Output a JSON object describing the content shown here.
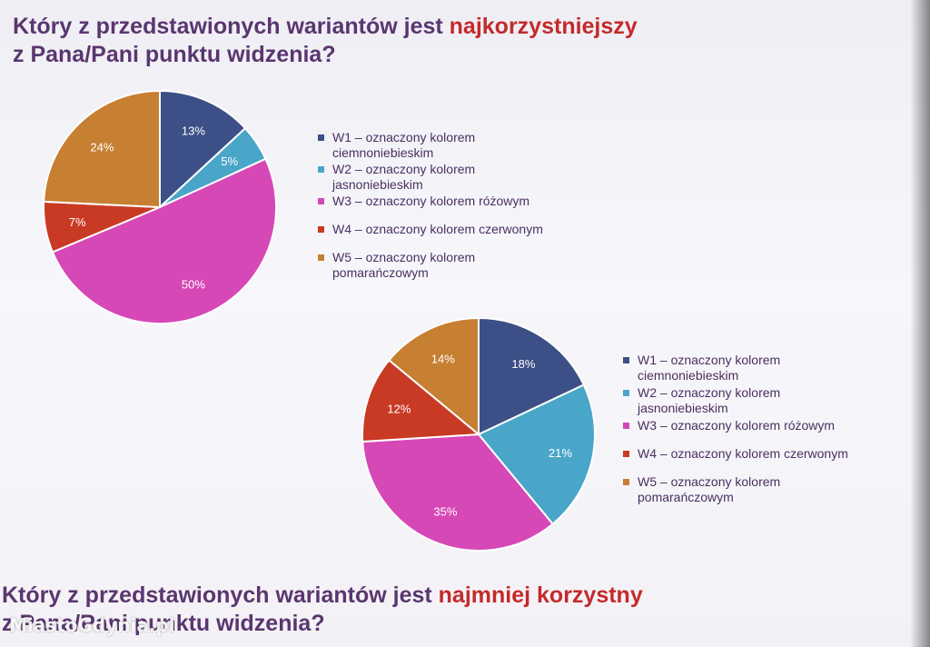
{
  "heading_top": {
    "part1": "Który z przedstawionych wariantów jest ",
    "highlight": "najkorzystniejszy",
    "line2": "z Pana/Pani punktu widzenia?"
  },
  "heading_bottom": {
    "part1": "Który z przedstawionych wariantów jest ",
    "highlight": "najmniej korzystny",
    "line2": "z Pana/Pani punktu widzenia?"
  },
  "watermark": "MiastoGdynia.pl",
  "colors": {
    "title": "#5a3670",
    "accent": "#c42a2a",
    "W1": "#3c4f86",
    "W2": "#4aa6c8",
    "W3": "#d648b6",
    "W4": "#c93a24",
    "W5": "#c77f32"
  },
  "legend": [
    {
      "line1": "W1 – oznaczony kolorem",
      "line2": "ciemnoniebieskim"
    },
    {
      "line1": "W2 – oznaczony kolorem",
      "line2": "jasnoniebieskim"
    },
    {
      "line1": "W3 – oznaczony kolorem różowym",
      "line2": ""
    },
    {
      "line1": "W4 – oznaczony kolorem czerwonym",
      "line2": ""
    },
    {
      "line1": "W5 – oznaczony kolorem",
      "line2": "pomarańczowym"
    }
  ],
  "chart_data": [
    {
      "type": "pie",
      "title": "Który z przedstawionych wariantów jest najkorzystniejszy z Pana/Pani punktu widzenia?",
      "categories": [
        "W1",
        "W2",
        "W3",
        "W4",
        "W5"
      ],
      "values": [
        13,
        5,
        50,
        7,
        24
      ],
      "labels": [
        "13%",
        "5%",
        "50%",
        "7%",
        "24%"
      ],
      "legend_position": "right"
    },
    {
      "type": "pie",
      "title": "",
      "categories": [
        "W1",
        "W2",
        "W3",
        "W4",
        "W5"
      ],
      "values": [
        18,
        21,
        35,
        12,
        14
      ],
      "labels": [
        "18%",
        "21%",
        "35%",
        "12%",
        "14%"
      ],
      "legend_position": "right"
    }
  ]
}
